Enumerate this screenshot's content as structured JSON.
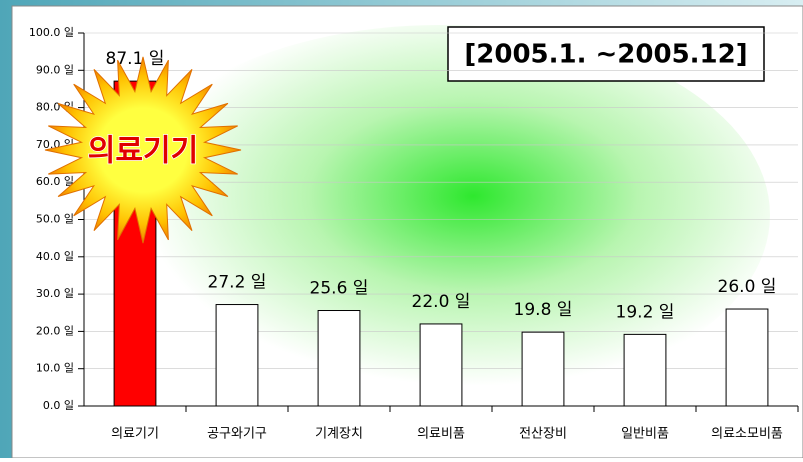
{
  "chart_data": {
    "type": "bar",
    "period": "[2005.1. ~2005.12]",
    "highlight": "의료기기",
    "categories": [
      "의료기기",
      "공구와기구",
      "기계장치",
      "의료비품",
      "전산장비",
      "일반비품",
      "의료소모비품"
    ],
    "values": [
      87.1,
      27.2,
      25.6,
      22.0,
      19.8,
      19.2,
      26.0
    ],
    "value_labels": [
      "87.1 일",
      "27.2 일",
      "25.6 일",
      "22.0 일",
      "19.8 일",
      "19.2 일",
      "26.0 일"
    ],
    "colors": [
      "#ff0000",
      "#ffffff",
      "#ffffff",
      "#ffffff",
      "#ffffff",
      "#ffffff",
      "#ffffff"
    ],
    "ylim": [
      0,
      100
    ],
    "yticks": [
      {
        "value": 0,
        "label": "0.0 일"
      },
      {
        "value": 10,
        "label": "10.0 일"
      },
      {
        "value": 20,
        "label": "20.0 일"
      },
      {
        "value": 30,
        "label": "30.0 일"
      },
      {
        "value": 40,
        "label": "40.0 일"
      },
      {
        "value": 50,
        "label": "50.0 일"
      },
      {
        "value": 60,
        "label": "60.0 일"
      },
      {
        "value": 70,
        "label": "70.0 일"
      },
      {
        "value": 80,
        "label": "80.0 일"
      },
      {
        "value": 90,
        "label": "90.0 일"
      },
      {
        "value": 100,
        "label": "100.0 일"
      }
    ],
    "grid": true
  }
}
